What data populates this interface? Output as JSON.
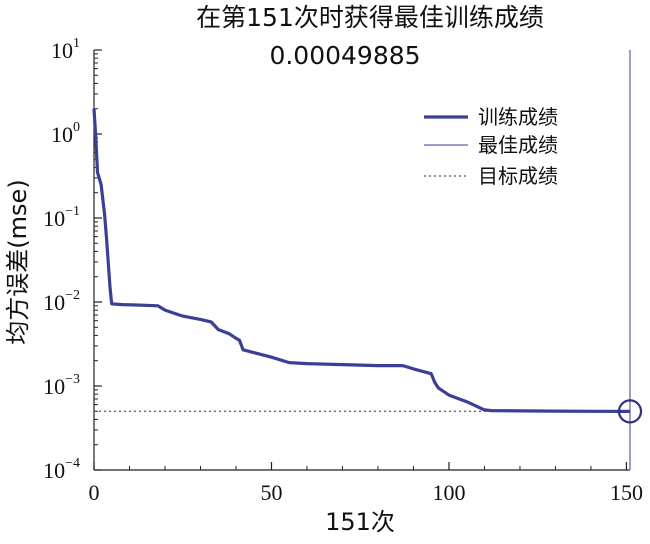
{
  "chart_data": {
    "type": "line",
    "title": "在第151次时获得最佳训练成绩",
    "subtitle": "0.00049885",
    "xlabel": "151次",
    "ylabel": "均方误差(mse)",
    "xlim": [
      0,
      151
    ],
    "ylim": [
      0.0001,
      10
    ],
    "y_scale": "log",
    "grid": false,
    "legend_position": "top-right",
    "x_ticks": [
      "0",
      "50",
      "100",
      "150"
    ],
    "y_ticks": [
      {
        "base": "10",
        "exp": "1"
      },
      {
        "base": "10",
        "exp": "0"
      },
      {
        "base": "10",
        "exp": "−1"
      },
      {
        "base": "10",
        "exp": "−2"
      },
      {
        "base": "10",
        "exp": "−3"
      },
      {
        "base": "10",
        "exp": "−4"
      }
    ],
    "series": [
      {
        "name": "训练成绩",
        "color": "#3b3f96",
        "x": [
          0,
          0.5,
          1,
          2,
          3,
          3.5,
          4,
          4.5,
          5,
          8,
          12,
          18,
          20,
          25,
          30,
          33,
          35,
          38,
          40,
          41,
          42,
          45,
          50,
          55,
          60,
          70,
          80,
          87,
          90,
          95,
          96,
          97,
          100,
          105,
          110,
          112,
          120,
          130,
          140,
          151
        ],
        "y": [
          2.0,
          0.9,
          0.35,
          0.25,
          0.11,
          0.06,
          0.03,
          0.015,
          0.0095,
          0.0093,
          0.0092,
          0.009,
          0.008,
          0.0068,
          0.0062,
          0.0058,
          0.0047,
          0.0042,
          0.0037,
          0.0035,
          0.0027,
          0.0025,
          0.0022,
          0.0019,
          0.00185,
          0.0018,
          0.00175,
          0.00175,
          0.0016,
          0.0014,
          0.0011,
          0.00095,
          0.00078,
          0.00065,
          0.00052,
          0.00051,
          0.000505,
          0.000502,
          0.0005,
          0.00049885
        ]
      },
      {
        "name": "最佳成绩",
        "color": "#7a7fb8",
        "x": [
          151,
          151
        ],
        "y": [
          0.0001,
          10
        ]
      },
      {
        "name": "目标成绩",
        "color": "#555555",
        "x": [
          0,
          151
        ],
        "y": [
          0.0005,
          0.0005
        ]
      }
    ],
    "best_point": {
      "x": 151,
      "y": 0.00049885
    }
  }
}
